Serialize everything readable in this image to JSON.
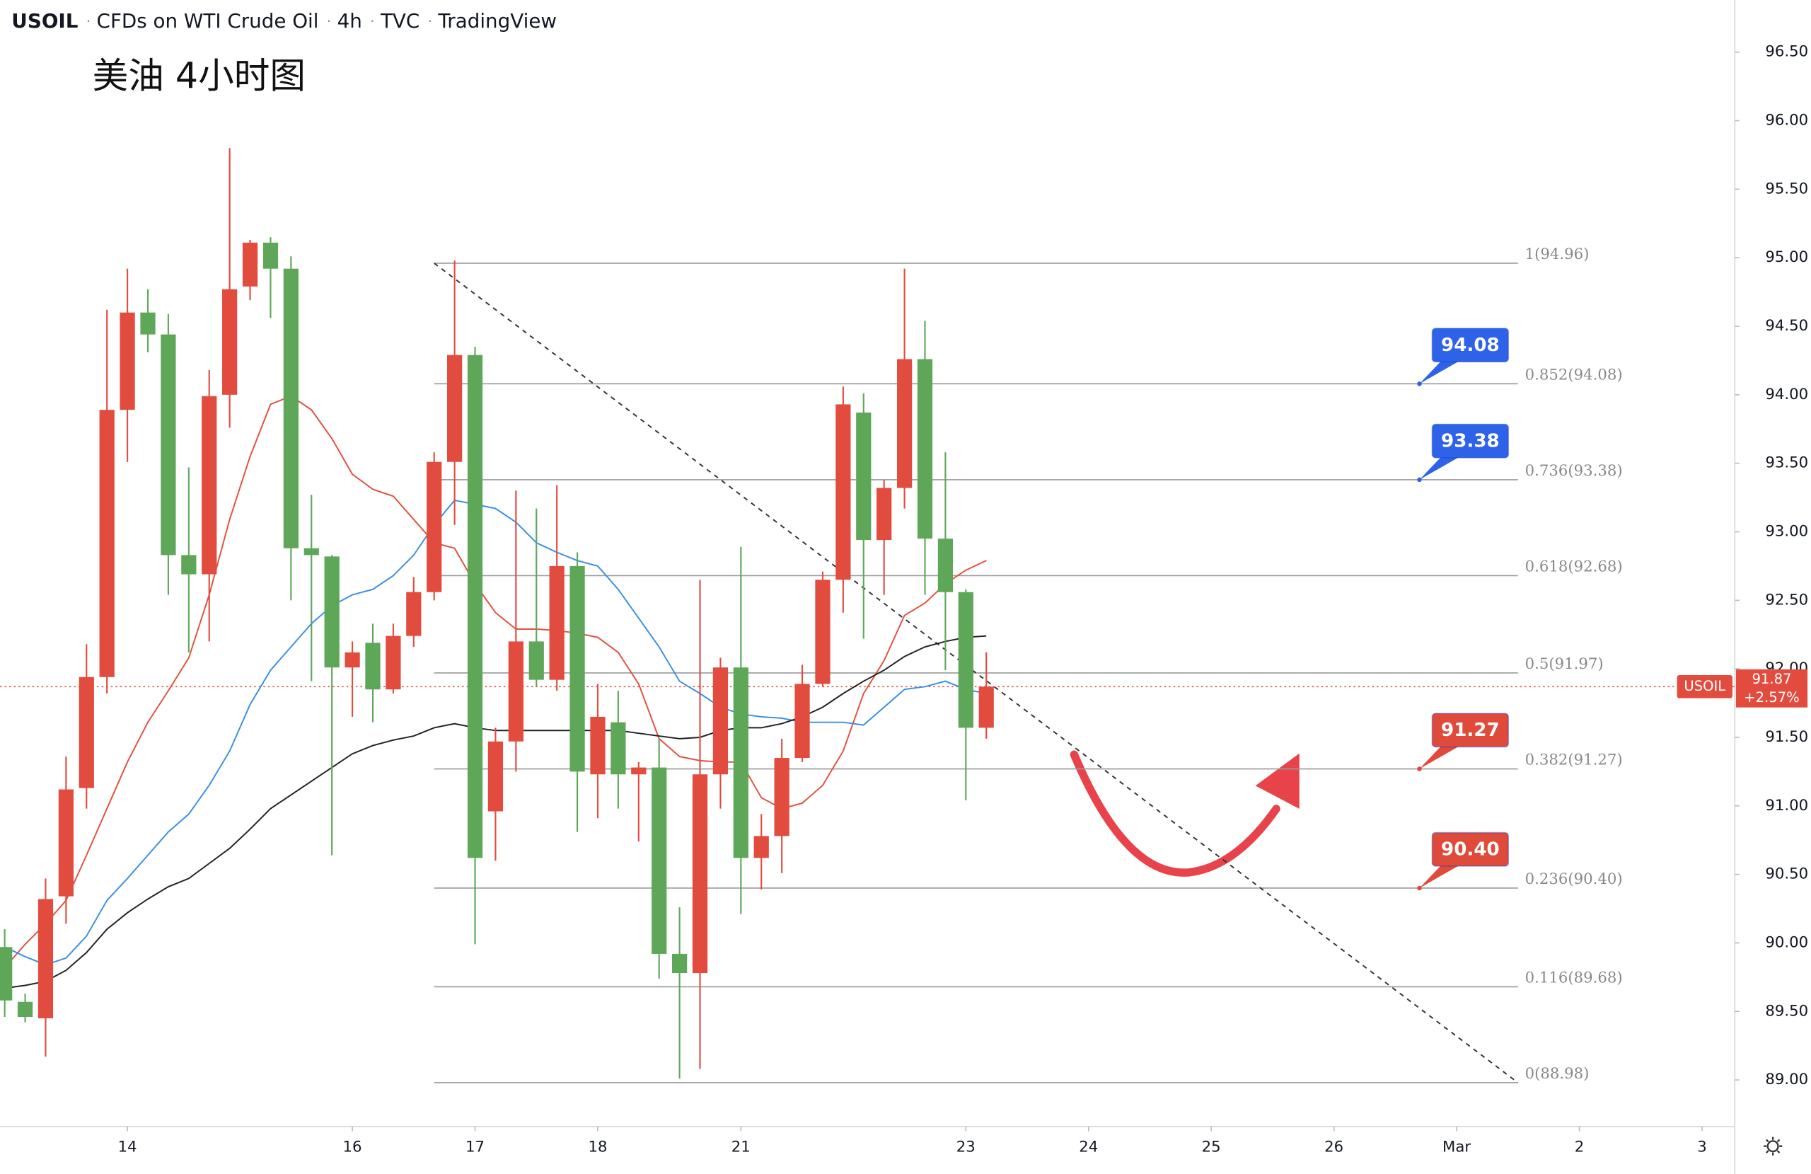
{
  "chart_data": {
    "type": "candlestick",
    "header": [
      "USOIL",
      "CFDs on WTI Crude Oil",
      "4h",
      "TVC",
      "TradingView"
    ],
    "title": "美油 4小时图",
    "up_color": "#e24c3f",
    "down_color": "#5ea758",
    "ylim": [
      88.66,
      96.88
    ],
    "yticks": [
      {
        "value": 89,
        "label": "89.00"
      },
      {
        "value": 89.5,
        "label": "89.50"
      },
      {
        "value": 90,
        "label": "90.00"
      },
      {
        "value": 90.5,
        "label": "90.50"
      },
      {
        "value": 91,
        "label": "91.00"
      },
      {
        "value": 91.5,
        "label": "91.50"
      },
      {
        "value": 92,
        "label": "92.00"
      },
      {
        "value": 92.5,
        "label": "92.50"
      },
      {
        "value": 93,
        "label": "93.00"
      },
      {
        "value": 93.5,
        "label": "93.50"
      },
      {
        "value": 94,
        "label": "94.00"
      },
      {
        "value": 94.5,
        "label": "94.50"
      },
      {
        "value": 95,
        "label": "95.00"
      },
      {
        "value": 95.5,
        "label": "95.50"
      },
      {
        "value": 96,
        "label": "96.00"
      },
      {
        "value": 96.5,
        "label": "96.50"
      }
    ],
    "xlim": [
      -0.23,
      84.6
    ],
    "xticks": [
      {
        "value": 6,
        "label": "14"
      },
      {
        "value": 17,
        "label": "16"
      },
      {
        "value": 23,
        "label": "17"
      },
      {
        "value": 29,
        "label": "18"
      },
      {
        "value": 36,
        "label": "21"
      },
      {
        "value": 47,
        "label": "23"
      },
      {
        "value": 53,
        "label": "24"
      },
      {
        "value": 59,
        "label": "25"
      },
      {
        "value": 65,
        "label": "26"
      },
      {
        "value": 71,
        "label": "Mar"
      },
      {
        "value": 77,
        "label": "2"
      },
      {
        "value": 83,
        "label": "3"
      }
    ],
    "candles": [
      {
        "o": 89.97,
        "h": 90.1,
        "l": 89.46,
        "c": 89.58
      },
      {
        "o": 89.57,
        "h": 89.63,
        "l": 89.42,
        "c": 89.46
      },
      {
        "o": 89.45,
        "h": 90.47,
        "l": 89.17,
        "c": 90.32
      },
      {
        "o": 90.34,
        "h": 91.36,
        "l": 90.14,
        "c": 91.12
      },
      {
        "o": 91.13,
        "h": 92.18,
        "l": 90.98,
        "c": 91.94
      },
      {
        "o": 91.94,
        "h": 94.62,
        "l": 91.82,
        "c": 93.89
      },
      {
        "o": 93.89,
        "h": 94.92,
        "l": 93.51,
        "c": 94.6
      },
      {
        "o": 94.6,
        "h": 94.77,
        "l": 94.31,
        "c": 94.44
      },
      {
        "o": 94.44,
        "h": 94.59,
        "l": 92.54,
        "c": 92.83
      },
      {
        "o": 92.83,
        "h": 93.47,
        "l": 92.12,
        "c": 92.69
      },
      {
        "o": 92.69,
        "h": 94.18,
        "l": 92.2,
        "c": 93.99
      },
      {
        "o": 94.0,
        "h": 95.8,
        "l": 93.76,
        "c": 94.77
      },
      {
        "o": 94.79,
        "h": 95.13,
        "l": 94.69,
        "c": 95.11
      },
      {
        "o": 95.11,
        "h": 95.15,
        "l": 94.56,
        "c": 94.92
      },
      {
        "o": 94.92,
        "h": 95.01,
        "l": 92.5,
        "c": 92.88
      },
      {
        "o": 92.88,
        "h": 93.27,
        "l": 91.91,
        "c": 92.83
      },
      {
        "o": 92.82,
        "h": 92.83,
        "l": 90.64,
        "c": 92.01
      },
      {
        "o": 92.01,
        "h": 92.2,
        "l": 91.65,
        "c": 92.12
      },
      {
        "o": 92.19,
        "h": 92.33,
        "l": 91.61,
        "c": 91.85
      },
      {
        "o": 91.85,
        "h": 92.33,
        "l": 91.82,
        "c": 92.24
      },
      {
        "o": 92.24,
        "h": 92.67,
        "l": 92.16,
        "c": 92.56
      },
      {
        "o": 92.56,
        "h": 93.58,
        "l": 92.5,
        "c": 93.51
      },
      {
        "o": 93.51,
        "h": 94.98,
        "l": 93.05,
        "c": 94.29
      },
      {
        "o": 94.29,
        "h": 94.35,
        "l": 89.99,
        "c": 90.62
      },
      {
        "o": 90.96,
        "h": 91.57,
        "l": 90.6,
        "c": 91.47
      },
      {
        "o": 91.47,
        "h": 93.3,
        "l": 91.25,
        "c": 92.2
      },
      {
        "o": 92.2,
        "h": 93.17,
        "l": 91.87,
        "c": 91.92
      },
      {
        "o": 91.92,
        "h": 93.34,
        "l": 91.84,
        "c": 92.75
      },
      {
        "o": 92.75,
        "h": 92.85,
        "l": 90.81,
        "c": 91.25
      },
      {
        "o": 91.23,
        "h": 91.89,
        "l": 90.91,
        "c": 91.65
      },
      {
        "o": 91.61,
        "h": 91.84,
        "l": 90.98,
        "c": 91.23
      },
      {
        "o": 91.23,
        "h": 91.32,
        "l": 90.74,
        "c": 91.28
      },
      {
        "o": 91.28,
        "h": 91.49,
        "l": 89.74,
        "c": 89.92
      },
      {
        "o": 89.92,
        "h": 90.26,
        "l": 89.01,
        "c": 89.78
      },
      {
        "o": 89.78,
        "h": 92.65,
        "l": 89.08,
        "c": 91.23
      },
      {
        "o": 91.23,
        "h": 92.08,
        "l": 90.98,
        "c": 92.01
      },
      {
        "o": 92.01,
        "h": 92.89,
        "l": 90.21,
        "c": 90.62
      },
      {
        "o": 90.62,
        "h": 90.94,
        "l": 90.39,
        "c": 90.78
      },
      {
        "o": 90.78,
        "h": 91.49,
        "l": 90.51,
        "c": 91.35
      },
      {
        "o": 91.35,
        "h": 92.03,
        "l": 91.32,
        "c": 91.89
      },
      {
        "o": 91.89,
        "h": 92.71,
        "l": 91.87,
        "c": 92.65
      },
      {
        "o": 92.65,
        "h": 94.06,
        "l": 92.41,
        "c": 93.93
      },
      {
        "o": 93.87,
        "h": 94.01,
        "l": 92.22,
        "c": 92.94
      },
      {
        "o": 92.94,
        "h": 93.38,
        "l": 92.54,
        "c": 93.32
      },
      {
        "o": 93.32,
        "h": 94.92,
        "l": 93.17,
        "c": 94.26
      },
      {
        "o": 94.26,
        "h": 94.54,
        "l": 92.54,
        "c": 92.95
      },
      {
        "o": 92.95,
        "h": 93.58,
        "l": 91.99,
        "c": 92.56
      },
      {
        "o": 92.56,
        "h": 92.58,
        "l": 91.04,
        "c": 91.57
      },
      {
        "o": 91.57,
        "h": 92.12,
        "l": 91.49,
        "c": 91.87
      }
    ],
    "series": [
      {
        "color": "#e3503e",
        "values": [
          89.82,
          89.99,
          90.14,
          90.31,
          90.64,
          90.98,
          91.32,
          91.61,
          91.84,
          92.08,
          92.54,
          93.09,
          93.55,
          93.93,
          93.99,
          93.89,
          93.68,
          93.42,
          93.31,
          93.26,
          93.09,
          92.92,
          92.88,
          92.62,
          92.41,
          92.29,
          92.29,
          92.28,
          92.26,
          92.23,
          92.12,
          91.89,
          91.49,
          91.36,
          91.33,
          91.32,
          91.32,
          91.06,
          90.98,
          91.02,
          91.15,
          91.4,
          91.82,
          92.06,
          92.39,
          92.48,
          92.62,
          92.72,
          92.79
        ]
      },
      {
        "color": "#3a8ee6",
        "values": [
          89.97,
          89.9,
          89.84,
          89.89,
          90.05,
          90.31,
          90.47,
          90.64,
          90.81,
          90.94,
          91.15,
          91.4,
          91.74,
          91.99,
          92.16,
          92.33,
          92.46,
          92.54,
          92.58,
          92.68,
          92.83,
          93.05,
          93.23,
          93.2,
          93.17,
          93.07,
          92.92,
          92.85,
          92.79,
          92.75,
          92.58,
          92.37,
          92.16,
          91.91,
          91.82,
          91.72,
          91.67,
          91.65,
          91.64,
          91.61,
          91.61,
          91.61,
          91.59,
          91.72,
          91.85,
          91.87,
          91.91,
          91.85,
          91.82
        ]
      },
      {
        "color": "#222222",
        "values": [
          89.67,
          89.69,
          89.72,
          89.8,
          89.93,
          90.1,
          90.22,
          90.32,
          90.41,
          90.47,
          90.58,
          90.69,
          90.83,
          90.98,
          91.08,
          91.18,
          91.28,
          91.38,
          91.44,
          91.48,
          91.51,
          91.57,
          91.6,
          91.57,
          91.55,
          91.55,
          91.55,
          91.55,
          91.55,
          91.55,
          91.55,
          91.53,
          91.51,
          91.49,
          91.5,
          91.55,
          91.57,
          91.57,
          91.6,
          91.65,
          91.72,
          91.82,
          91.91,
          91.99,
          92.09,
          92.16,
          92.2,
          92.23,
          92.24
        ]
      }
    ],
    "fib": {
      "start": 21,
      "end": 74,
      "color": "#9a9a9a",
      "levels": [
        {
          "value": 94.96,
          "label": "1(94.96)"
        },
        {
          "value": 94.08,
          "label": "0.852(94.08)"
        },
        {
          "value": 93.38,
          "label": "0.736(93.38)"
        },
        {
          "value": 92.68,
          "label": "0.618(92.68)"
        },
        {
          "value": 91.97,
          "label": "0.5(91.97)"
        },
        {
          "value": 91.27,
          "label": "0.382(91.27)"
        },
        {
          "value": 90.4,
          "label": "0.236(90.40)"
        },
        {
          "value": 89.68,
          "label": "0.116(89.68)"
        },
        {
          "value": 88.98,
          "label": "0(88.98)"
        }
      ]
    },
    "callouts": [
      {
        "value": 94.08,
        "label": "94.08",
        "color": "#2e62e8"
      },
      {
        "value": 93.38,
        "label": "93.38",
        "color": "#2e62e8"
      },
      {
        "value": 91.27,
        "label": "91.27",
        "color": "#e04a3a"
      },
      {
        "value": 90.4,
        "label": "90.40",
        "color": "#e04a3a"
      }
    ],
    "last": {
      "symbol": "USOIL",
      "value": 91.87,
      "label": "91.87",
      "change": "+2.57%",
      "color": "#e24c3f"
    }
  }
}
